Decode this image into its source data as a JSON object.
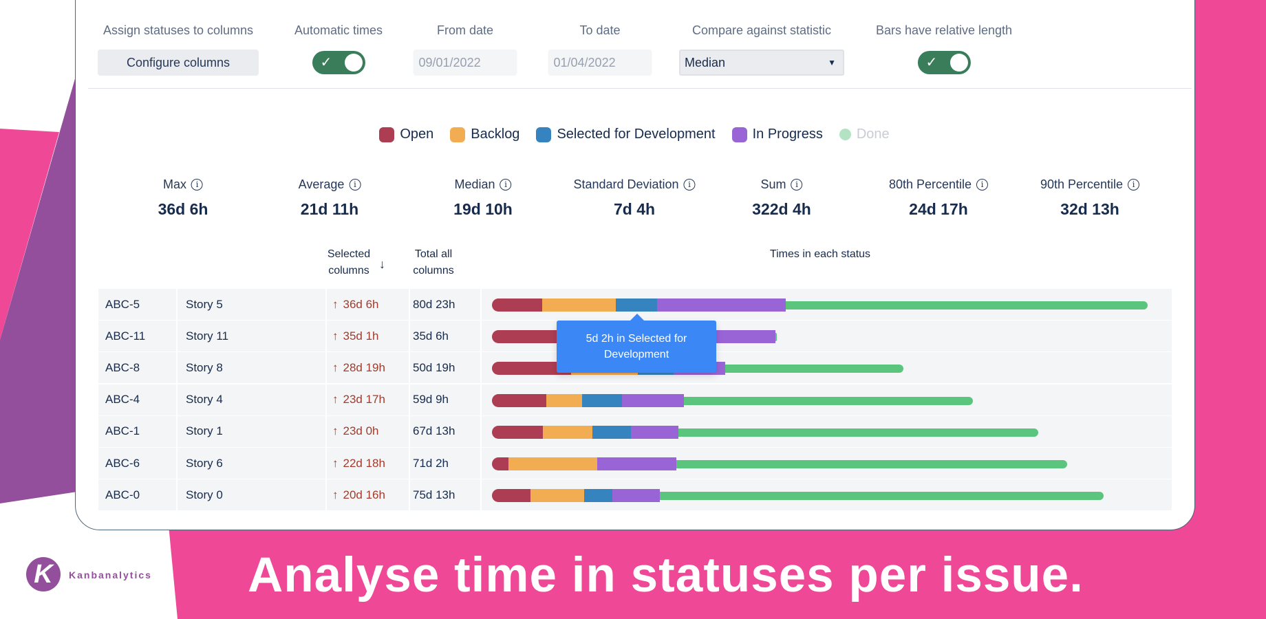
{
  "colors": {
    "open": "#ad3d52",
    "backlog": "#f2ac52",
    "selected": "#3584bf",
    "in_progress": "#9964d6",
    "done": "#5bc57e",
    "done_faded": "#b3e3c3",
    "pink": "#ee4897",
    "purple": "#934f9b",
    "toggle": "#3a7d5a",
    "tooltip": "#3b87f5"
  },
  "controls": {
    "assign_label": "Assign statuses to columns",
    "configure_button": "Configure columns",
    "automatic_label": "Automatic times",
    "automatic_on": true,
    "from_label": "From date",
    "from_value": "09/01/2022",
    "to_label": "To date",
    "to_value": "01/04/2022",
    "compare_label": "Compare against statistic",
    "compare_value": "Median",
    "relative_label": "Bars have relative length",
    "relative_on": true
  },
  "legend": [
    "Open",
    "Backlog",
    "Selected for Development",
    "In Progress",
    "Done"
  ],
  "stats": [
    {
      "label": "Max",
      "value": "36d 6h"
    },
    {
      "label": "Average",
      "value": "21d 11h"
    },
    {
      "label": "Median",
      "value": "19d 10h"
    },
    {
      "label": "Standard Deviation",
      "value": "7d 4h"
    },
    {
      "label": "Sum",
      "value": "322d 4h"
    },
    {
      "label": "80th Percentile",
      "value": "24d 17h"
    },
    {
      "label": "90th Percentile",
      "value": "32d 13h"
    }
  ],
  "table": {
    "headers": {
      "selected_1": "Selected",
      "selected_2": "columns",
      "total_1": "Total all",
      "total_2": "columns",
      "times": "Times in each status"
    },
    "rows": [
      {
        "key": "ABC-5",
        "summary": "Story 5",
        "selected": "36d 6h",
        "total": "80d 23h",
        "days": {
          "open": 6.2,
          "backlog": 9.1,
          "selected": 5.1,
          "in_progress": 15.9,
          "done": 44.7
        }
      },
      {
        "key": "ABC-11",
        "summary": "Story 11",
        "selected": "35d 1h",
        "total": "35d 6h",
        "days": {
          "open": 9.0,
          "backlog": 6.0,
          "selected": 4.0,
          "in_progress": 16.0,
          "done": 0.2
        }
      },
      {
        "key": "ABC-8",
        "summary": "Story 8",
        "selected": "28d 19h",
        "total": "50d 19h",
        "days": {
          "open": 9.8,
          "backlog": 8.2,
          "selected": 4.4,
          "in_progress": 6.4,
          "done": 22.0
        }
      },
      {
        "key": "ABC-4",
        "summary": "Story 4",
        "selected": "23d 17h",
        "total": "59d 9h",
        "days": {
          "open": 6.7,
          "backlog": 4.4,
          "selected": 5.0,
          "in_progress": 7.6,
          "done": 35.7
        }
      },
      {
        "key": "ABC-1",
        "summary": "Story 1",
        "selected": "23d 0h",
        "total": "67d 13h",
        "days": {
          "open": 6.3,
          "backlog": 6.1,
          "selected": 4.8,
          "in_progress": 5.8,
          "done": 44.5
        }
      },
      {
        "key": "ABC-6",
        "summary": "Story 6",
        "selected": "22d 18h",
        "total": "71d 2h",
        "days": {
          "open": 2.0,
          "backlog": 11.0,
          "selected": 0,
          "in_progress": 9.75,
          "done": 48.3
        }
      },
      {
        "key": "ABC-0",
        "summary": "Story 0",
        "selected": "20d 16h",
        "total": "75d 13h",
        "days": {
          "open": 4.8,
          "backlog": 6.6,
          "selected": 3.5,
          "in_progress": 5.8,
          "done": 54.8
        }
      }
    ]
  },
  "tooltip": "5d 2h in Selected for Development",
  "headline": "Analyse time in statuses per issue.",
  "brand": "Kanbanalytics"
}
